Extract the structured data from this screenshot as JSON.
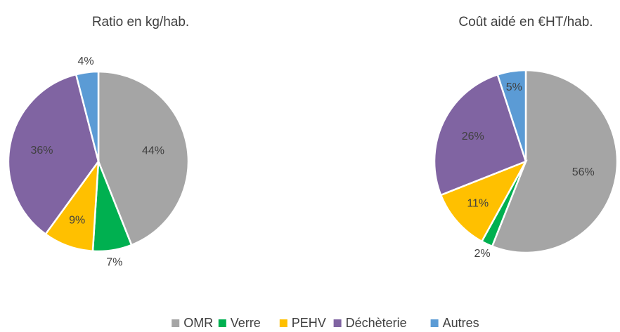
{
  "chart_data": [
    {
      "type": "pie",
      "title": "Ratio en kg/hab.",
      "categories": [
        "OMR",
        "Verre",
        "PEHV",
        "Déchèterie",
        "Autres"
      ],
      "values": [
        44,
        7,
        9,
        36,
        4
      ],
      "value_labels": [
        "44%",
        "7%",
        "9%",
        "36%",
        "4%"
      ],
      "colors": [
        "#a5a5a5",
        "#00b050",
        "#ffc000",
        "#8064a2",
        "#5b9bd5"
      ],
      "legend": "bottom"
    },
    {
      "type": "pie",
      "title": "Coût aidé en €HT/hab.",
      "categories": [
        "OMR",
        "Verre",
        "PEHV",
        "Déchèterie",
        "Autres"
      ],
      "values": [
        56,
        2,
        11,
        26,
        5
      ],
      "value_labels": [
        "56%",
        "2%",
        "11%",
        "26%",
        "5%"
      ],
      "colors": [
        "#a5a5a5",
        "#00b050",
        "#ffc000",
        "#8064a2",
        "#5b9bd5"
      ],
      "legend": "bottom"
    }
  ]
}
